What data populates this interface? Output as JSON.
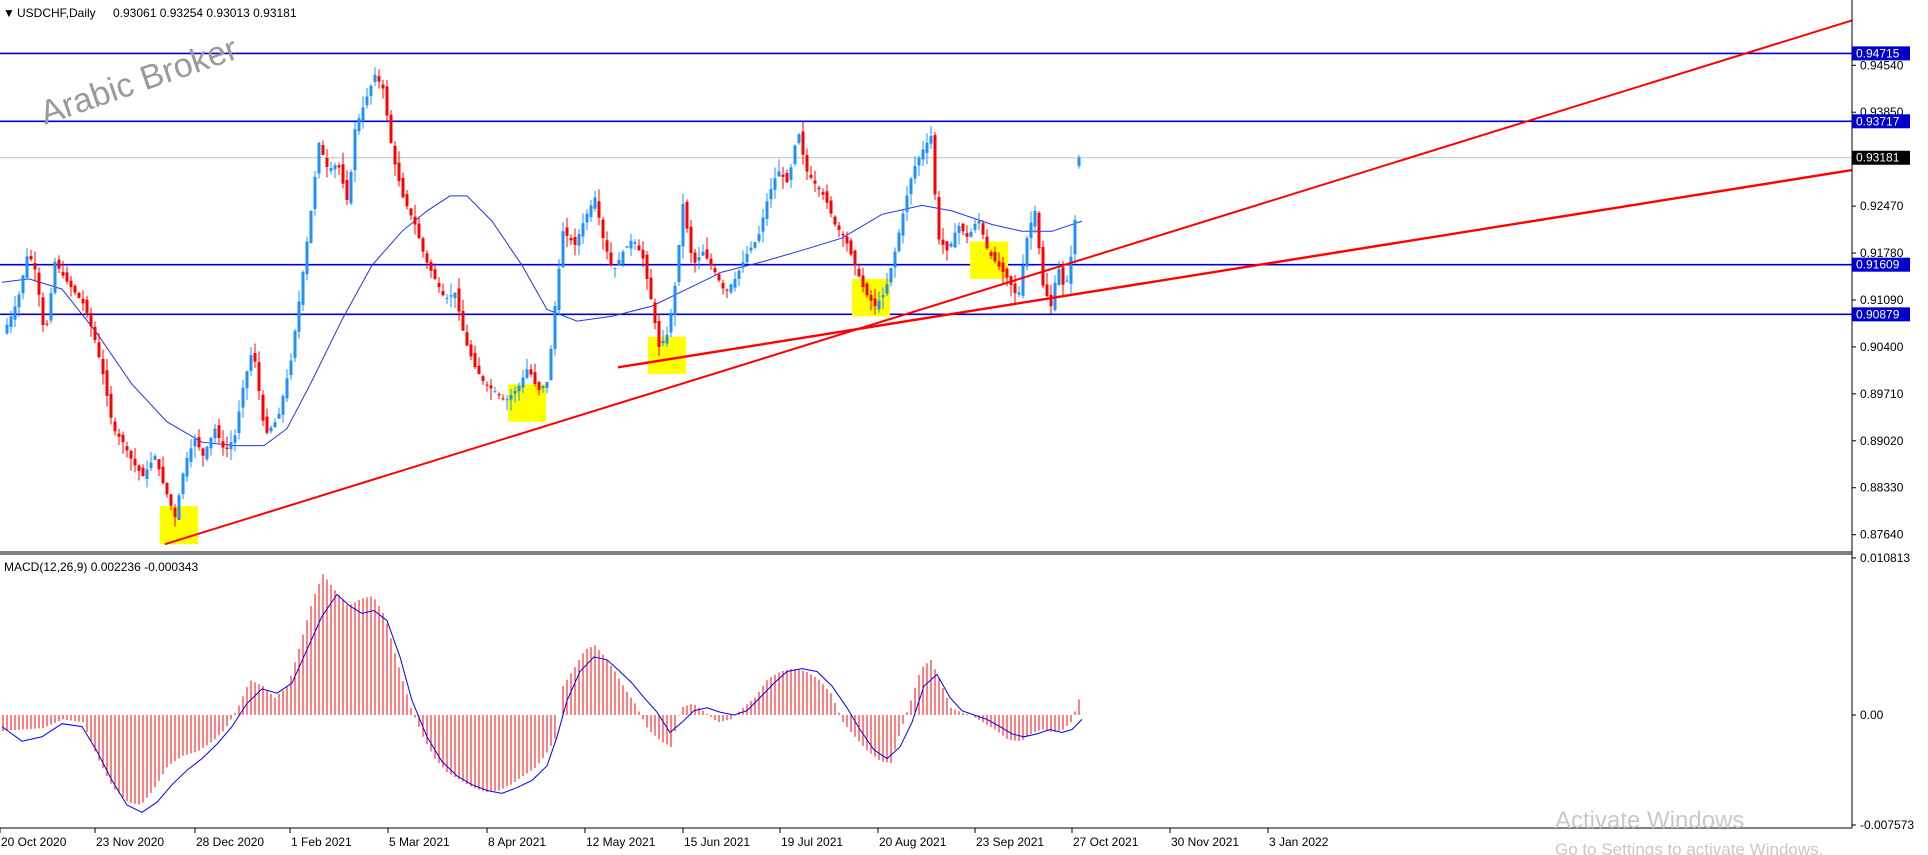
{
  "chart_data": [
    {
      "type": "candlestick",
      "title": "USDCHF,Daily",
      "ohlc_header": "0.93061 0.93254 0.93013 0.93181",
      "symbol_triangle": "▼",
      "watermark": "Arabic Broker",
      "y_ticks": [
        "0.94540",
        "0.93850",
        "0.92470",
        "0.91780",
        "0.91090",
        "0.90400",
        "0.89710",
        "0.89020",
        "0.88330",
        "0.87640"
      ],
      "x_ticks": [
        "20 Oct 2020",
        "23 Nov 2020",
        "28 Dec 2020",
        "1 Feb 2021",
        "5 Mar 2021",
        "8 Apr 2021",
        "12 May 2021",
        "15 Jun 2021",
        "19 Jul 2021",
        "20 Aug 2021",
        "23 Sep 2021",
        "27 Oct 2021",
        "30 Nov 2021",
        "3 Jan 2022"
      ],
      "ylim": [
        0.874,
        0.955
      ],
      "horizontal_levels": [
        {
          "value": 0.94715,
          "label": "0.94715",
          "color": "#0000cc"
        },
        {
          "value": 0.93717,
          "label": "0.93717",
          "color": "#0000cc"
        },
        {
          "value": 0.91609,
          "label": "0.91609",
          "color": "#0000cc"
        },
        {
          "value": 0.90879,
          "label": "0.90879",
          "color": "#0000cc"
        }
      ],
      "current_price": {
        "value": 0.93181,
        "label": "0.93181"
      },
      "trendlines": [
        {
          "from": [
            "28 Dec 2020",
            0.875
          ],
          "to": [
            "3 Jan 2022+",
            0.952
          ],
          "color": "#ff0000"
        },
        {
          "from": [
            "19 Jul 2021",
            0.901
          ],
          "to": [
            "3 Jan 2022+",
            0.93
          ],
          "color": "#ff0000"
        }
      ],
      "ma_series": [
        [
          0,
          0.9135
        ],
        [
          27,
          0.914
        ],
        [
          60,
          0.9125
        ],
        [
          95,
          0.906
        ],
        [
          130,
          0.8985
        ],
        [
          165,
          0.893
        ],
        [
          200,
          0.89
        ],
        [
          233,
          0.8895
        ],
        [
          262,
          0.8895
        ],
        [
          285,
          0.892
        ],
        [
          310,
          0.899
        ],
        [
          340,
          0.908
        ],
        [
          370,
          0.916
        ],
        [
          400,
          0.921
        ],
        [
          425,
          0.924
        ],
        [
          448,
          0.9262
        ],
        [
          465,
          0.9262
        ],
        [
          490,
          0.9225
        ],
        [
          520,
          0.916
        ],
        [
          545,
          0.9095
        ],
        [
          575,
          0.9078
        ],
        [
          610,
          0.9085
        ],
        [
          650,
          0.91
        ],
        [
          685,
          0.9125
        ],
        [
          720,
          0.915
        ],
        [
          760,
          0.9165
        ],
        [
          800,
          0.9182
        ],
        [
          840,
          0.92
        ],
        [
          880,
          0.9235
        ],
        [
          920,
          0.9248
        ],
        [
          950,
          0.924
        ],
        [
          990,
          0.922
        ],
        [
          1020,
          0.921
        ],
        [
          1050,
          0.921
        ],
        [
          1080,
          0.9225
        ]
      ],
      "highlight_boxes": [
        {
          "date": "28 Dec 2020",
          "low": 0.875,
          "high": 0.8806
        },
        {
          "date": "12 May 2021",
          "low": 0.893,
          "high": 0.8985
        },
        {
          "date": "19 Jul 2021",
          "low": 0.9,
          "high": 0.9055
        },
        {
          "date": "27 Oct 2021",
          "low": 0.9085,
          "high": 0.914
        },
        {
          "date": "30 Nov 2021",
          "low": 0.914,
          "high": 0.9195
        }
      ],
      "close_path": [
        [
          0,
          0.906
        ],
        [
          8,
          0.9085
        ],
        [
          15,
          0.911
        ],
        [
          25,
          0.918
        ],
        [
          33,
          0.915
        ],
        [
          42,
          0.905
        ],
        [
          52,
          0.9165
        ],
        [
          62,
          0.914
        ],
        [
          72,
          0.912
        ],
        [
          82,
          0.91
        ],
        [
          92,
          0.905
        ],
        [
          100,
          0.9
        ],
        [
          110,
          0.892
        ],
        [
          120,
          0.89
        ],
        [
          130,
          0.887
        ],
        [
          140,
          0.885
        ],
        [
          152,
          0.888
        ],
        [
          160,
          0.884
        ],
        [
          172,
          0.879
        ],
        [
          182,
          0.887
        ],
        [
          192,
          0.8905
        ],
        [
          200,
          0.888
        ],
        [
          212,
          0.892
        ],
        [
          222,
          0.8885
        ],
        [
          232,
          0.891
        ],
        [
          240,
          0.898
        ],
        [
          250,
          0.904
        ],
        [
          262,
          0.891
        ],
        [
          275,
          0.8935
        ],
        [
          288,
          0.902
        ],
        [
          300,
          0.915
        ],
        [
          308,
          0.924
        ],
        [
          316,
          0.934
        ],
        [
          325,
          0.93
        ],
        [
          335,
          0.931
        ],
        [
          345,
          0.925
        ],
        [
          352,
          0.936
        ],
        [
          362,
          0.94
        ],
        [
          372,
          0.944
        ],
        [
          380,
          0.942
        ],
        [
          390,
          0.932
        ],
        [
          400,
          0.926
        ],
        [
          412,
          0.922
        ],
        [
          422,
          0.917
        ],
        [
          432,
          0.914
        ],
        [
          442,
          0.911
        ],
        [
          452,
          0.912
        ],
        [
          462,
          0.905
        ],
        [
          472,
          0.901
        ],
        [
          482,
          0.8985
        ],
        [
          492,
          0.8975
        ],
        [
          502,
          0.896
        ],
        [
          515,
          0.898
        ],
        [
          525,
          0.901
        ],
        [
          535,
          0.8975
        ],
        [
          545,
          0.899
        ],
        [
          552,
          0.91
        ],
        [
          560,
          0.921
        ],
        [
          572,
          0.919
        ],
        [
          582,
          0.923
        ],
        [
          592,
          0.926
        ],
        [
          600,
          0.92
        ],
        [
          610,
          0.915
        ],
        [
          620,
          0.918
        ],
        [
          630,
          0.92
        ],
        [
          640,
          0.917
        ],
        [
          648,
          0.911
        ],
        [
          656,
          0.904
        ],
        [
          665,
          0.906
        ],
        [
          672,
          0.913
        ],
        [
          680,
          0.925
        ],
        [
          690,
          0.916
        ],
        [
          700,
          0.918
        ],
        [
          712,
          0.915
        ],
        [
          722,
          0.912
        ],
        [
          732,
          0.914
        ],
        [
          745,
          0.918
        ],
        [
          755,
          0.92
        ],
        [
          765,
          0.926
        ],
        [
          775,
          0.93
        ],
        [
          785,
          0.928
        ],
        [
          795,
          0.936
        ],
        [
          803,
          0.93
        ],
        [
          812,
          0.928
        ],
        [
          822,
          0.926
        ],
        [
          832,
          0.922
        ],
        [
          842,
          0.92
        ],
        [
          852,
          0.916
        ],
        [
          862,
          0.912
        ],
        [
          872,
          0.91
        ],
        [
          882,
          0.912
        ],
        [
          892,
          0.918
        ],
        [
          902,
          0.925
        ],
        [
          910,
          0.93
        ],
        [
          920,
          0.933
        ],
        [
          928,
          0.935
        ],
        [
          935,
          0.92
        ],
        [
          945,
          0.918
        ],
        [
          955,
          0.922
        ],
        [
          965,
          0.92
        ],
        [
          975,
          0.923
        ],
        [
          985,
          0.918
        ],
        [
          995,
          0.916
        ],
        [
          1005,
          0.914
        ],
        [
          1015,
          0.911
        ],
        [
          1025,
          0.921
        ],
        [
          1032,
          0.924
        ],
        [
          1040,
          0.913
        ],
        [
          1048,
          0.91
        ],
        [
          1055,
          0.916
        ],
        [
          1062,
          0.912
        ],
        [
          1070,
          0.919
        ],
        [
          1076,
          0.93
        ],
        [
          1080,
          0.9318
        ]
      ]
    },
    {
      "type": "macd",
      "title": "MACD(12,26,9) 0.002236 -0.000343",
      "y_ticks": [
        "0.010813",
        "0.00",
        "-0.007573"
      ],
      "ylim": [
        -0.007573,
        0.010813
      ],
      "histogram_path": [
        [
          0,
          -0.0011
        ],
        [
          20,
          -0.001
        ],
        [
          40,
          -0.0009
        ],
        [
          60,
          -0.0003
        ],
        [
          80,
          -0.0005
        ],
        [
          95,
          -0.003
        ],
        [
          110,
          -0.005
        ],
        [
          125,
          -0.006
        ],
        [
          138,
          -0.0062
        ],
        [
          150,
          -0.0052
        ],
        [
          165,
          -0.0035
        ],
        [
          180,
          -0.0028
        ],
        [
          195,
          -0.0025
        ],
        [
          210,
          -0.0018
        ],
        [
          222,
          -0.001
        ],
        [
          235,
          0.0005
        ],
        [
          247,
          0.0024
        ],
        [
          260,
          0.002
        ],
        [
          272,
          0.0012
        ],
        [
          285,
          0.002
        ],
        [
          297,
          0.0048
        ],
        [
          310,
          0.008
        ],
        [
          320,
          0.0097
        ],
        [
          333,
          0.0085
        ],
        [
          345,
          0.0075
        ],
        [
          358,
          0.008
        ],
        [
          370,
          0.0082
        ],
        [
          382,
          0.0068
        ],
        [
          395,
          0.0035
        ],
        [
          408,
          0.0005
        ],
        [
          420,
          -0.0015
        ],
        [
          432,
          -0.003
        ],
        [
          445,
          -0.004
        ],
        [
          458,
          -0.0045
        ],
        [
          470,
          -0.005
        ],
        [
          483,
          -0.0053
        ],
        [
          496,
          -0.0052
        ],
        [
          508,
          -0.0048
        ],
        [
          520,
          -0.0042
        ],
        [
          533,
          -0.0036
        ],
        [
          545,
          -0.0025
        ],
        [
          553,
          -0.0015
        ],
        [
          560,
          0.002
        ],
        [
          572,
          0.0033
        ],
        [
          582,
          0.0045
        ],
        [
          592,
          0.0048
        ],
        [
          602,
          0.004
        ],
        [
          612,
          0.003
        ],
        [
          622,
          0.0018
        ],
        [
          632,
          0.0008
        ],
        [
          645,
          -0.001
        ],
        [
          658,
          -0.0018
        ],
        [
          668,
          -0.0022
        ],
        [
          678,
          0.0005
        ],
        [
          690,
          0.0008
        ],
        [
          702,
          0.0002
        ],
        [
          715,
          -0.0005
        ],
        [
          728,
          -0.0003
        ],
        [
          740,
          0.0005
        ],
        [
          752,
          0.0012
        ],
        [
          765,
          0.0025
        ],
        [
          778,
          0.003
        ],
        [
          790,
          0.0032
        ],
        [
          803,
          0.003
        ],
        [
          815,
          0.0025
        ],
        [
          828,
          0.0015
        ],
        [
          840,
          -0.0005
        ],
        [
          852,
          -0.0015
        ],
        [
          865,
          -0.0025
        ],
        [
          878,
          -0.0032
        ],
        [
          888,
          -0.0033
        ],
        [
          898,
          -0.001
        ],
        [
          908,
          0.001
        ],
        [
          918,
          0.0032
        ],
        [
          928,
          0.0038
        ],
        [
          938,
          0.0022
        ],
        [
          948,
          0.0005
        ],
        [
          958,
          0.0002
        ],
        [
          968,
          0.0
        ],
        [
          980,
          -0.0005
        ],
        [
          992,
          -0.001
        ],
        [
          1005,
          -0.0017
        ],
        [
          1018,
          -0.0018
        ],
        [
          1030,
          -0.0012
        ],
        [
          1040,
          -0.001
        ],
        [
          1050,
          -0.0012
        ],
        [
          1060,
          -0.001
        ],
        [
          1068,
          -0.0005
        ],
        [
          1075,
          0.0008
        ],
        [
          1080,
          0.0022
        ]
      ],
      "signal_path": [
        [
          0,
          -0.0008
        ],
        [
          20,
          -0.0018
        ],
        [
          40,
          -0.0015
        ],
        [
          60,
          -0.0006
        ],
        [
          80,
          -0.0008
        ],
        [
          95,
          -0.0025
        ],
        [
          110,
          -0.0045
        ],
        [
          125,
          -0.0062
        ],
        [
          140,
          -0.0067
        ],
        [
          155,
          -0.006
        ],
        [
          170,
          -0.0048
        ],
        [
          185,
          -0.0038
        ],
        [
          200,
          -0.003
        ],
        [
          215,
          -0.002
        ],
        [
          230,
          -0.0008
        ],
        [
          245,
          0.0008
        ],
        [
          260,
          0.0018
        ],
        [
          275,
          0.0015
        ],
        [
          290,
          0.0022
        ],
        [
          305,
          0.0045
        ],
        [
          320,
          0.0068
        ],
        [
          335,
          0.0083
        ],
        [
          348,
          0.0075
        ],
        [
          360,
          0.007
        ],
        [
          372,
          0.0072
        ],
        [
          385,
          0.0065
        ],
        [
          398,
          0.004
        ],
        [
          410,
          0.001
        ],
        [
          425,
          -0.0015
        ],
        [
          440,
          -0.0032
        ],
        [
          455,
          -0.0042
        ],
        [
          470,
          -0.0048
        ],
        [
          485,
          -0.0052
        ],
        [
          500,
          -0.0054
        ],
        [
          515,
          -0.005
        ],
        [
          530,
          -0.0045
        ],
        [
          545,
          -0.0035
        ],
        [
          555,
          -0.0015
        ],
        [
          565,
          0.001
        ],
        [
          578,
          0.003
        ],
        [
          592,
          0.004
        ],
        [
          605,
          0.0038
        ],
        [
          618,
          0.003
        ],
        [
          630,
          0.0022
        ],
        [
          642,
          0.0012
        ],
        [
          655,
          0.0002
        ],
        [
          668,
          -0.0012
        ],
        [
          680,
          -0.0005
        ],
        [
          692,
          0.0003
        ],
        [
          705,
          0.0005
        ],
        [
          718,
          0.0002
        ],
        [
          732,
          0.0
        ],
        [
          745,
          0.0003
        ],
        [
          758,
          0.0012
        ],
        [
          772,
          0.0022
        ],
        [
          785,
          0.003
        ],
        [
          800,
          0.0032
        ],
        [
          815,
          0.003
        ],
        [
          830,
          0.002
        ],
        [
          845,
          0.0005
        ],
        [
          858,
          -0.001
        ],
        [
          872,
          -0.0024
        ],
        [
          885,
          -0.003
        ],
        [
          898,
          -0.0022
        ],
        [
          910,
          -0.0005
        ],
        [
          922,
          0.002
        ],
        [
          935,
          0.0028
        ],
        [
          948,
          0.0012
        ],
        [
          960,
          0.0003
        ],
        [
          972,
          0.0
        ],
        [
          985,
          -0.0003
        ],
        [
          998,
          -0.0008
        ],
        [
          1010,
          -0.0013
        ],
        [
          1022,
          -0.0015
        ],
        [
          1035,
          -0.0013
        ],
        [
          1048,
          -0.001
        ],
        [
          1060,
          -0.0012
        ],
        [
          1070,
          -0.001
        ],
        [
          1080,
          -0.0003
        ]
      ],
      "histogram_color": "#ff0000",
      "signal_color": "#0000ff"
    }
  ],
  "colors": {
    "bull": "#1e90ff",
    "bear": "#ff0000",
    "level": "#0000cc",
    "trend": "#ff0000",
    "ma": "#2233ee",
    "highlight": "#ffff00"
  },
  "os_overlay": {
    "line1": "Activate Windows",
    "line2": "Go to Settings to activate Windows."
  }
}
